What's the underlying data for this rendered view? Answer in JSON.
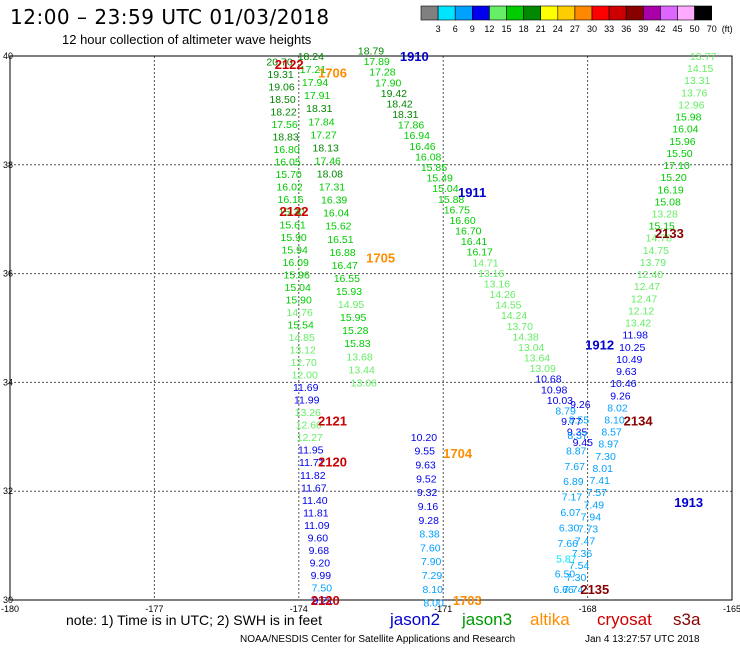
{
  "header": {
    "title": "12:00 – 23:59 UTC 01/03/2018",
    "subtitle": "12 hour collection of altimeter wave heights",
    "note": "note: 1) Time is in UTC; 2) SWH is in feet",
    "credit": "NOAA/NESDIS Center for Satellite Applications and Research",
    "timestamp": "Jan  4 13:27:57 UTC 2018"
  },
  "satellites": [
    {
      "name": "jason2",
      "color": "#0000cc"
    },
    {
      "name": "jason3",
      "color": "#009900"
    },
    {
      "name": "altika",
      "color": "#ff8c00"
    },
    {
      "name": "cryosat",
      "color": "#cc0000"
    },
    {
      "name": "s3a",
      "color": "#880000"
    }
  ],
  "chart_data": {
    "type": "scatter",
    "title": "12:00 – 23:59 UTC 01/03/2018",
    "subtitle": "12 hour collection of altimeter wave heights",
    "xlim": [
      -180,
      -165
    ],
    "ylim": [
      30,
      40
    ],
    "x_ticks": [
      "-180",
      "-177",
      "-174",
      "-171",
      "-168",
      "-165"
    ],
    "x_tick_values": [
      -180,
      -177,
      -174,
      -171,
      -168,
      -165
    ],
    "y_ticks": [
      "30",
      "32",
      "34",
      "36",
      "38",
      "40"
    ],
    "y_tick_values": [
      30,
      32,
      34,
      36,
      38,
      40
    ],
    "grid": true,
    "color_scale": {
      "unit": "(ft)",
      "bins": [
        {
          "label": "3",
          "color": "#808080"
        },
        {
          "label": "6",
          "color": "#00e5ff"
        },
        {
          "label": "9",
          "color": "#00a0ff"
        },
        {
          "label": "12",
          "color": "#0000ee"
        },
        {
          "label": "15",
          "color": "#66ee66"
        },
        {
          "label": "18",
          "color": "#00cc00"
        },
        {
          "label": "21",
          "color": "#008800"
        },
        {
          "label": "24",
          "color": "#ffff00"
        },
        {
          "label": "27",
          "color": "#ffcc00"
        },
        {
          "label": "30",
          "color": "#ff8800"
        },
        {
          "label": "33",
          "color": "#ff0000"
        },
        {
          "label": "36",
          "color": "#cc0000"
        },
        {
          "label": "39",
          "color": "#880000"
        },
        {
          "label": "42",
          "color": "#aa00aa"
        },
        {
          "label": "45",
          "color": "#dd66ff"
        },
        {
          "label": "50",
          "color": "#ffaaff"
        },
        {
          "label": "70",
          "color": "#000000"
        }
      ]
    },
    "pass_labels": [
      {
        "text": "2122",
        "x": -174.2,
        "y": 39.85,
        "color": "#cc0000"
      },
      {
        "text": "1706",
        "x": -173.3,
        "y": 39.7,
        "color": "#ff8c00"
      },
      {
        "text": "1910",
        "x": -171.6,
        "y": 40.0,
        "color": "#0000cc"
      },
      {
        "text": "1911",
        "x": -170.4,
        "y": 37.5,
        "color": "#0000cc"
      },
      {
        "text": "2122",
        "x": -174.1,
        "y": 37.15,
        "color": "#cc0000"
      },
      {
        "text": "1705",
        "x": -172.3,
        "y": 36.3,
        "color": "#ff8c00"
      },
      {
        "text": "2133",
        "x": -166.3,
        "y": 36.75,
        "color": "#880000"
      },
      {
        "text": "1912",
        "x": -167.75,
        "y": 34.7,
        "color": "#0000cc"
      },
      {
        "text": "2121",
        "x": -173.3,
        "y": 33.3,
        "color": "#cc0000"
      },
      {
        "text": "2134",
        "x": -166.95,
        "y": 33.3,
        "color": "#880000"
      },
      {
        "text": "1704",
        "x": -170.7,
        "y": 32.7,
        "color": "#ff8c00"
      },
      {
        "text": "2120",
        "x": -173.3,
        "y": 32.55,
        "color": "#cc0000"
      },
      {
        "text": "1913",
        "x": -165.9,
        "y": 31.8,
        "color": "#0000cc"
      },
      {
        "text": "2135",
        "x": -167.85,
        "y": 30.2,
        "color": "#880000"
      },
      {
        "text": "1703",
        "x": -170.5,
        "y": 30.0,
        "color": "#ff8c00"
      },
      {
        "text": "2120",
        "x": -173.45,
        "y": 30.0,
        "color": "#cc0000"
      }
    ],
    "series": [
      {
        "name": "2122/2121/2120",
        "x_start": -174.4,
        "x_end": -173.5,
        "y_start": 39.9,
        "y_end": 30.0,
        "values": [
          20.7,
          19.31,
          19.06,
          18.5,
          18.22,
          17.56,
          18.83,
          16.8,
          16.05,
          15.7,
          16.02,
          16.16,
          15.3,
          15.61,
          15.9,
          15.94,
          16.09,
          15.96,
          15.04,
          15.9,
          14.76,
          15.54,
          14.85,
          13.12,
          12.7,
          12.0,
          11.69,
          11.99,
          13.26,
          12.66,
          12.27,
          11.95,
          11.71,
          11.82,
          11.67,
          11.4,
          11.81,
          11.09,
          9.6,
          9.68,
          9.2,
          9.99,
          7.5,
          9.21
        ]
      },
      {
        "name": "1706/1705",
        "x_start": -173.75,
        "x_end": -172.65,
        "y_start": 40.0,
        "y_end": 34.0,
        "values": [
          18.24,
          17.21,
          17.94,
          17.91,
          18.31,
          17.84,
          17.27,
          18.13,
          17.46,
          18.08,
          17.31,
          16.39,
          16.04,
          15.62,
          16.51,
          16.88,
          16.47,
          16.55,
          15.93,
          14.95,
          15.95,
          15.28,
          15.83,
          13.68,
          13.44,
          13.06
        ]
      },
      {
        "name": "1910/1911/1912",
        "x_start": -172.5,
        "x_end": -168.1,
        "y_start": 40.1,
        "y_end": 32.9,
        "values": [
          18.79,
          17.89,
          17.28,
          17.9,
          19.42,
          18.42,
          18.31,
          17.86,
          16.94,
          16.46,
          16.08,
          15.85,
          15.49,
          15.04,
          15.88,
          16.75,
          16.6,
          16.7,
          16.41,
          16.17,
          14.71,
          13.16,
          13.16,
          14.26,
          14.55,
          14.24,
          13.7,
          14.38,
          13.04,
          13.64,
          13.09,
          10.68,
          10.98,
          10.03,
          8.79,
          9.77,
          9.35,
          9.45
        ]
      },
      {
        "name": "2133/2134/2135",
        "x_start": -165.6,
        "x_end": -168.3,
        "y_start": 40.0,
        "y_end": 30.2,
        "values": [
          13.77,
          14.15,
          13.31,
          13.76,
          12.96,
          15.98,
          16.04,
          15.96,
          15.5,
          17.1,
          15.2,
          16.19,
          15.08,
          13.28,
          15.15,
          14.78,
          14.75,
          13.79,
          12.4,
          12.47,
          12.47,
          12.12,
          13.42,
          11.98,
          10.25,
          10.49,
          9.63,
          10.46,
          9.26,
          8.02,
          8.1,
          8.57,
          8.97,
          7.3,
          8.01,
          7.41,
          7.57,
          7.49,
          7.94,
          7.73,
          7.47,
          7.36,
          7.54,
          7.3,
          7.74
        ]
      },
      {
        "name": "1704/1703",
        "x_start": -171.4,
        "x_end": -171.2,
        "y_start": 33.0,
        "y_end": 29.95,
        "values": [
          10.2,
          9.55,
          9.63,
          9.52,
          9.32,
          9.16,
          9.28,
          8.38,
          7.6,
          7.9,
          7.29,
          8.1,
          8.0
        ]
      },
      {
        "name": "1912/1913",
        "x_start": -168.15,
        "x_end": -168.5,
        "y_start": 33.6,
        "y_end": 30.2,
        "values": [
          9.26,
          8.55,
          8.37,
          8.87,
          7.67,
          6.89,
          7.17,
          6.07,
          6.3,
          7.66,
          5.87,
          6.5,
          6.66
        ]
      }
    ]
  }
}
